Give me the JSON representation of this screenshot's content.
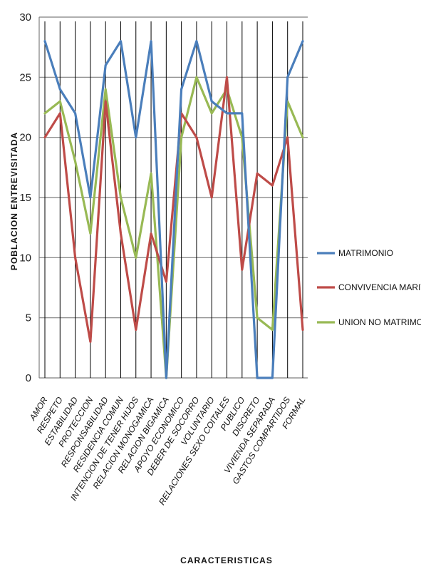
{
  "chart_data": {
    "type": "line",
    "title": "",
    "xlabel": "CARACTERISTICAS",
    "ylabel": "POBLACION ENTREVISITADA",
    "ylim": [
      0,
      30
    ],
    "yticks": [
      0,
      5,
      10,
      15,
      20,
      25,
      30
    ],
    "grid": "horizontal",
    "legend_position": "right",
    "categories": [
      "AMOR",
      "RESPETO",
      "ESTABILIDAD",
      "PROTECCION",
      "RESPONSABILIDAD",
      "RESIDENCIA COMUN",
      "INTENCION DE TENER HIJOS",
      "RELACION MONOGAMICA",
      "RELACION BIGAMICA",
      "APOYO ECONOMICO",
      "DEBER DE SOCORRO",
      "VOLUNTARIO",
      "RELACIONES SEXO COITALES",
      "PUBLICO",
      "DISCRETO",
      "VIVIENDA SEPARADA",
      "GASTOS COMPARTIDOS",
      "FORMAL"
    ],
    "series": [
      {
        "name": "MATRIMONIO",
        "color": "#4a7ebb",
        "values": [
          28,
          24,
          22,
          15,
          26,
          28,
          20,
          28,
          0,
          24,
          28,
          23,
          22,
          22,
          0,
          0,
          25,
          28
        ]
      },
      {
        "name": "CONVIVENCIA MARITAL",
        "color": "#be4b48",
        "values": [
          20,
          22,
          10,
          3,
          23,
          12,
          4,
          12,
          8,
          22,
          20,
          15,
          25,
          9,
          17,
          16,
          20,
          4
        ]
      },
      {
        "name": "UNION NO MATRIMONIAL",
        "color": "#98b954",
        "values": [
          22,
          23,
          18,
          12,
          24,
          15,
          10,
          17,
          0,
          20,
          25,
          22,
          24,
          20,
          5,
          4,
          23,
          20
        ]
      }
    ]
  }
}
